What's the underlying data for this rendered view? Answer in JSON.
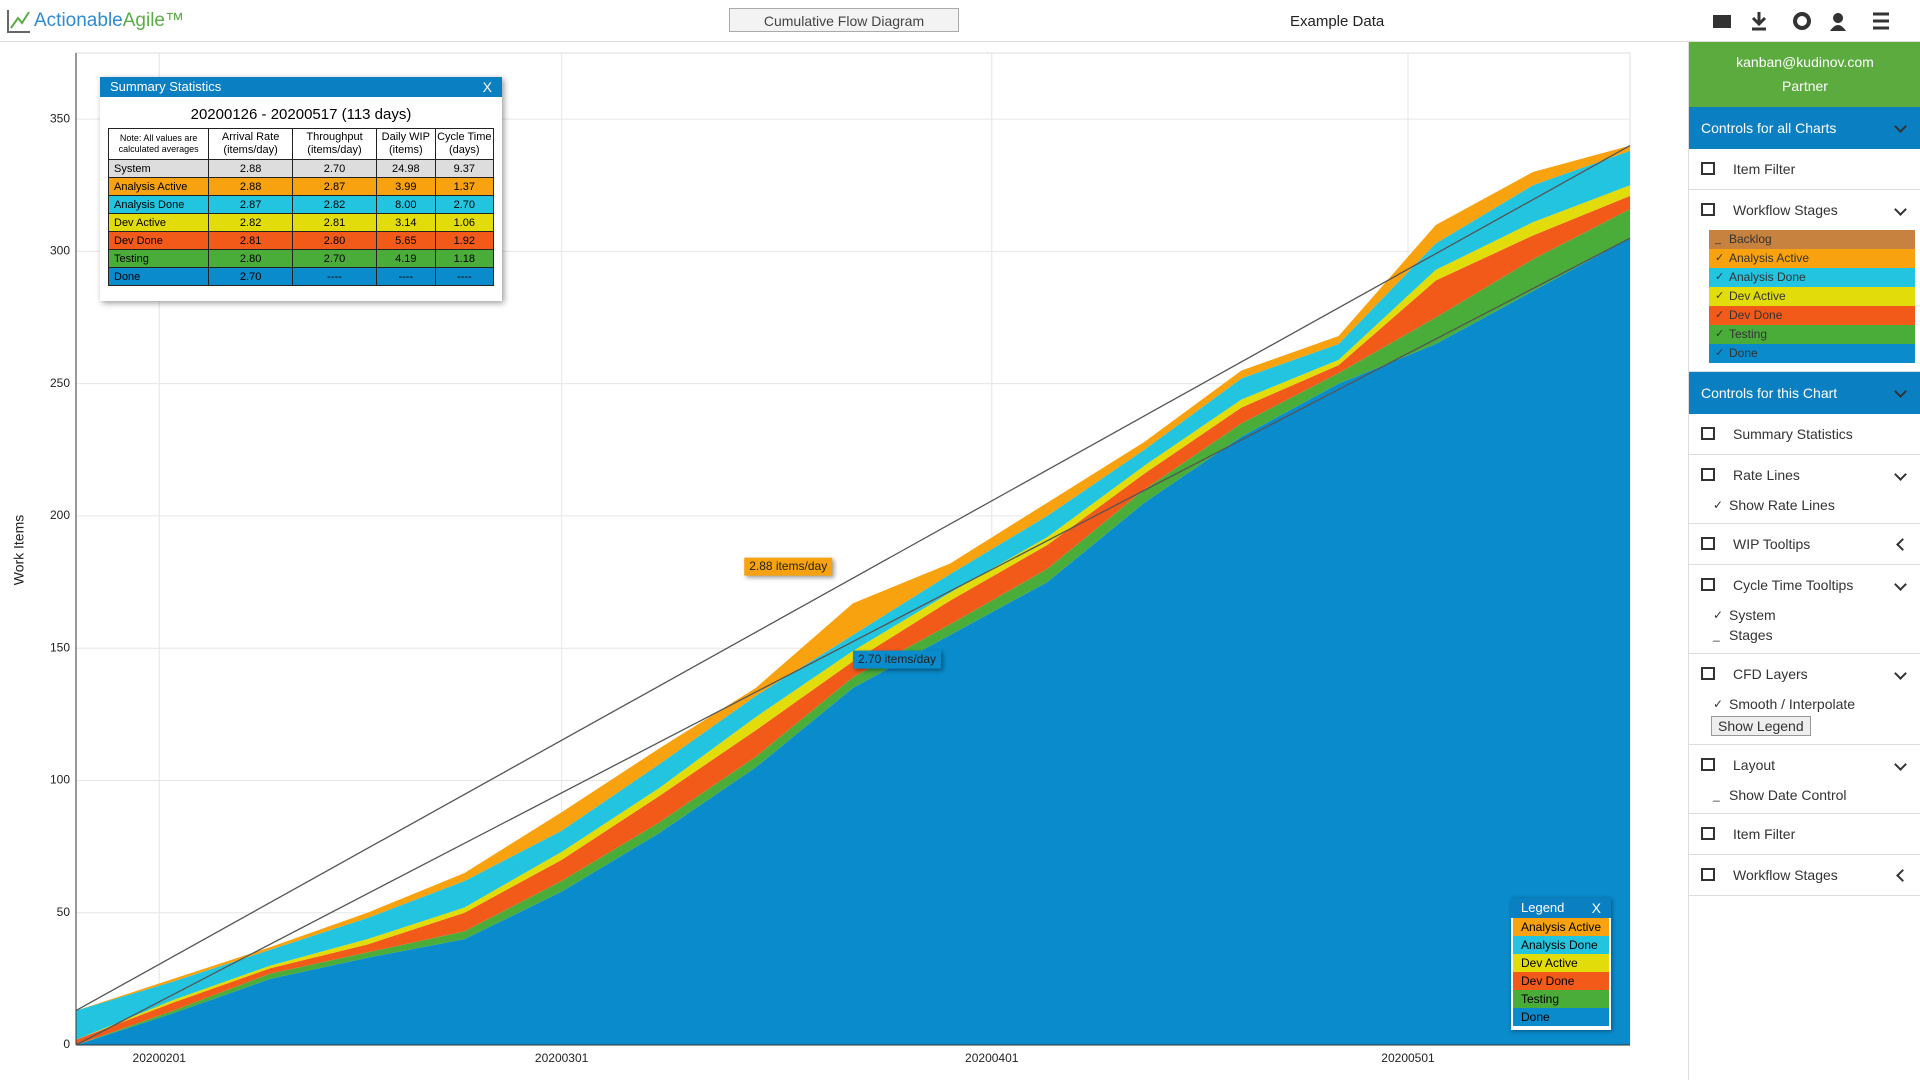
{
  "header": {
    "logo_a": "Actionable",
    "logo_b": "Agile™",
    "chart_select": "Cumulative Flow Diagram",
    "dataset": "Example Data"
  },
  "chart_data": {
    "type": "stacked-area",
    "y_label": "Work Items",
    "x": [
      "20200126",
      "20200202",
      "20200209",
      "20200216",
      "20200223",
      "20200301",
      "20200308",
      "20200315",
      "20200322",
      "20200329",
      "20200405",
      "20200412",
      "20200419",
      "20200426",
      "20200503",
      "20200510",
      "20200517"
    ],
    "series": [
      {
        "name": "Analysis Active",
        "color": "#f7a20e",
        "values": [
          0,
          1,
          1,
          2,
          3,
          7,
          6,
          3,
          12,
          4,
          5,
          3,
          3,
          3,
          7,
          5,
          2
        ]
      },
      {
        "name": "Analysis Done",
        "color": "#22c4e0",
        "values": [
          11,
          7,
          6,
          8,
          10,
          8,
          9,
          8,
          6,
          7,
          8,
          6,
          8,
          6,
          10,
          14,
          13
        ]
      },
      {
        "name": "Dev Active",
        "color": "#e3dc0b",
        "values": [
          0,
          1,
          1,
          2,
          2,
          3,
          3,
          5,
          4,
          3,
          3,
          3,
          3,
          2,
          4,
          5,
          4
        ]
      },
      {
        "name": "Dev Done",
        "color": "#f25a1a",
        "values": [
          2,
          3,
          2,
          3,
          7,
          8,
          10,
          10,
          6,
          9,
          9,
          6,
          6,
          3,
          14,
          9,
          5
        ]
      },
      {
        "name": "Testing",
        "color": "#4aad3a",
        "values": [
          0,
          1,
          2,
          2,
          3,
          4,
          4,
          4,
          4,
          4,
          5,
          5,
          5,
          4,
          10,
          12,
          11
        ]
      },
      {
        "name": "Done",
        "color": "#0a8bcb",
        "values": [
          0,
          12,
          25,
          33,
          40,
          58,
          80,
          105,
          135,
          155,
          175,
          205,
          230,
          250,
          265,
          285,
          305
        ]
      }
    ],
    "xlim": [
      "20200126",
      "20200517"
    ],
    "xticks": [
      "20200201",
      "20200301",
      "20200401",
      "20200501"
    ],
    "ylim": [
      0,
      375
    ],
    "yticks": [
      0,
      50,
      100,
      150,
      200,
      250,
      300,
      350
    ],
    "grid": true,
    "rate_lines": [
      {
        "label": "2.88 items/day",
        "color": "#f7a20e",
        "x": [
          "20200126",
          "20200517"
        ],
        "y": [
          13,
          340
        ]
      },
      {
        "label": "2.70 items/day",
        "color": "#0a8bcb",
        "x": [
          "20200126",
          "20200517"
        ],
        "y": [
          0,
          305
        ]
      }
    ],
    "legend": {
      "title": "Legend",
      "close": "X",
      "position": "bottom-right"
    }
  },
  "summary": {
    "title": "Summary Statistics",
    "close": "X",
    "range": "20200126 - 20200517 (113 days)",
    "note": "Note: All values are calculated averages",
    "columns": [
      "Arrival Rate (items/day)",
      "Throughput (items/day)",
      "Daily WIP (items)",
      "Cycle Time (days)"
    ],
    "rows": [
      {
        "name": "System",
        "color": "#dddddd",
        "cells": [
          "2.88",
          "2.70",
          "24.98",
          "9.37"
        ]
      },
      {
        "name": "Analysis Active",
        "color": "#f7a20e",
        "cells": [
          "2.88",
          "2.87",
          "3.99",
          "1.37"
        ]
      },
      {
        "name": "Analysis Done",
        "color": "#22c4e0",
        "cells": [
          "2.87",
          "2.82",
          "8.00",
          "2.70"
        ]
      },
      {
        "name": "Dev Active",
        "color": "#e3dc0b",
        "cells": [
          "2.82",
          "2.81",
          "3.14",
          "1.06"
        ]
      },
      {
        "name": "Dev Done",
        "color": "#f25a1a",
        "cells": [
          "2.81",
          "2.80",
          "5.65",
          "1.92"
        ]
      },
      {
        "name": "Testing",
        "color": "#4aad3a",
        "cells": [
          "2.80",
          "2.70",
          "4.19",
          "1.18"
        ]
      },
      {
        "name": "Done",
        "color": "#0a8bcb",
        "cells": [
          "2.70",
          "----",
          "----",
          "----"
        ]
      }
    ]
  },
  "sidebar": {
    "user": "kanban@kudinov.com",
    "role": "Partner",
    "sections": [
      {
        "title": "Controls for all Charts",
        "items": [
          {
            "label": "Item Filter"
          },
          {
            "label": "Workflow Stages",
            "expanded": true,
            "stages": [
              {
                "name": "Backlog",
                "checked": false,
                "color": "#c8823f"
              },
              {
                "name": "Analysis Active",
                "checked": true,
                "color": "#f7a20e"
              },
              {
                "name": "Analysis Done",
                "checked": true,
                "color": "#22c4e0"
              },
              {
                "name": "Dev Active",
                "checked": true,
                "color": "#e3dc0b"
              },
              {
                "name": "Dev Done",
                "checked": true,
                "color": "#f25a1a"
              },
              {
                "name": "Testing",
                "checked": true,
                "color": "#4aad3a"
              },
              {
                "name": "Done",
                "checked": true,
                "color": "#0a8bcb"
              }
            ]
          }
        ]
      },
      {
        "title": "Controls for this Chart",
        "items": [
          {
            "label": "Summary Statistics"
          },
          {
            "label": "Rate Lines",
            "expanded": true,
            "options": [
              {
                "label": "Show Rate Lines",
                "checked": true
              }
            ]
          },
          {
            "label": "WIP Tooltips",
            "expanded": false
          },
          {
            "label": "Cycle Time Tooltips",
            "expanded": true,
            "options": [
              {
                "label": "System",
                "checked": true
              },
              {
                "label": "Stages",
                "checked": false
              }
            ]
          },
          {
            "label": "CFD Layers",
            "expanded": true,
            "options": [
              {
                "label": "Smooth / Interpolate",
                "checked": true
              }
            ],
            "button": "Show Legend"
          },
          {
            "label": "Layout",
            "expanded": true,
            "options": [
              {
                "label": "Show Date Control",
                "checked": false
              }
            ]
          },
          {
            "label": "Item Filter"
          },
          {
            "label": "Workflow Stages",
            "expanded": false
          }
        ]
      }
    ]
  }
}
